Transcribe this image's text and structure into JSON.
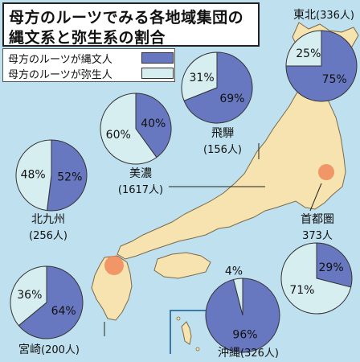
{
  "title_lines": [
    "母方のルーツでみる各地域集団の",
    "縄文系と弥生系の割合"
  ],
  "legend": [
    {
      "label": "母方のルーツが縄文人",
      "color": "#6878c0"
    },
    {
      "label": "母方のルーツが弥生人",
      "color": "#d7eef0"
    }
  ],
  "chart_data": [
    {
      "type": "pie",
      "region": "東北",
      "sample": "(336人)",
      "slices": [
        {
          "name": "縄文人",
          "value": 75,
          "label": "75%"
        },
        {
          "name": "弥生人",
          "value": 25,
          "label": "25%"
        }
      ]
    },
    {
      "type": "pie",
      "region": "飛騨",
      "sample": "(156人)",
      "slices": [
        {
          "name": "縄文人",
          "value": 69,
          "label": "69%"
        },
        {
          "name": "弥生人",
          "value": 31,
          "label": "31%"
        }
      ]
    },
    {
      "type": "pie",
      "region": "美濃",
      "sample": "(1617人)",
      "slices": [
        {
          "name": "縄文人",
          "value": 40,
          "label": "40%"
        },
        {
          "name": "弥生人",
          "value": 60,
          "label": "60%"
        }
      ]
    },
    {
      "type": "pie",
      "region": "北九州",
      "sample": "(256人)",
      "slices": [
        {
          "name": "縄文人",
          "value": 52,
          "label": "52%"
        },
        {
          "name": "弥生人",
          "value": 48,
          "label": "48%"
        }
      ]
    },
    {
      "type": "pie",
      "region": "首都圏",
      "sample": "373人",
      "slices": [
        {
          "name": "縄文人",
          "value": 29,
          "label": "29%"
        },
        {
          "name": "弥生人",
          "value": 71,
          "label": "71%"
        }
      ]
    },
    {
      "type": "pie",
      "region": "宮崎",
      "sample": "(200人)",
      "slices": [
        {
          "name": "縄文人",
          "value": 64,
          "label": "64%"
        },
        {
          "name": "弥生人",
          "value": 36,
          "label": "36%"
        }
      ]
    },
    {
      "type": "pie",
      "region": "沖縄",
      "sample": "(326人)",
      "slices": [
        {
          "name": "縄文人",
          "value": 96,
          "label": "96%"
        },
        {
          "name": "弥生人",
          "value": 4,
          "label": "4%"
        }
      ]
    }
  ],
  "colors": {
    "jomon": "#6878c0",
    "yayoi": "#d7eef0",
    "land": "#f6e3b0",
    "sea": "#bfe0ee",
    "highlight": "#f08a5a"
  }
}
